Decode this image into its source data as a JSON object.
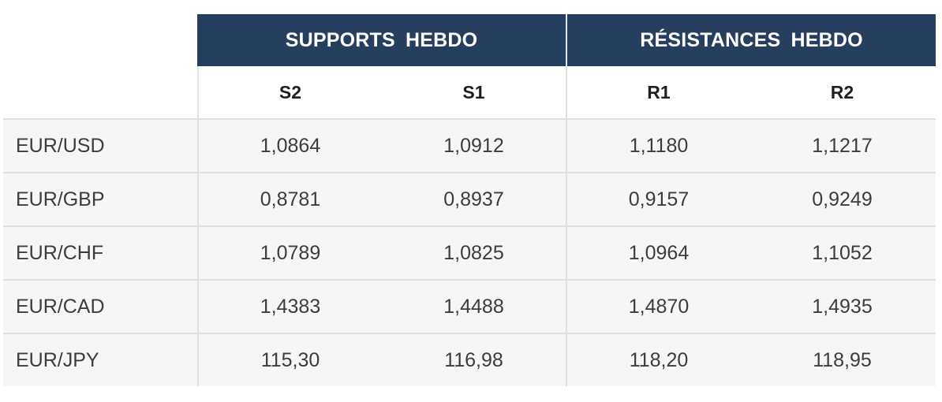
{
  "groups": {
    "supports": "SUPPORTS  HEBDO",
    "resistances": "RÉSISTANCES  HEBDO"
  },
  "columns": [
    "S2",
    "S1",
    "R1",
    "R2"
  ],
  "rows": [
    {
      "pair": "EUR/USD",
      "values": [
        "1,0864",
        "1,0912",
        "1,1180",
        "1,1217"
      ]
    },
    {
      "pair": "EUR/GBP",
      "values": [
        "0,8781",
        "0,8937",
        "0,9157",
        "0,9249"
      ]
    },
    {
      "pair": "EUR/CHF",
      "values": [
        "1,0789",
        "1,0825",
        "1,0964",
        "1,1052"
      ]
    },
    {
      "pair": "EUR/CAD",
      "values": [
        "1,4383",
        "1,4488",
        "1,4870",
        "1,4935"
      ]
    },
    {
      "pair": "EUR/JPY",
      "values": [
        "115,30",
        "116,98",
        "118,20",
        "118,95"
      ]
    }
  ],
  "colors": {
    "header_bg": "#263f5e",
    "header_text": "#ffffff",
    "row_bg": "#f6f6f6",
    "divider": "#e0e0e0"
  }
}
